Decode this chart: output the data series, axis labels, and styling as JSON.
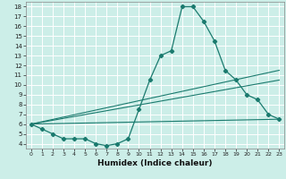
{
  "bg_color": "#cceee8",
  "grid_color": "#ffffff",
  "line_color": "#1a7a6e",
  "xlabel": "Humidex (Indice chaleur)",
  "xlim": [
    -0.5,
    23.5
  ],
  "ylim": [
    3.5,
    18.5
  ],
  "xticks": [
    0,
    1,
    2,
    3,
    4,
    5,
    6,
    7,
    8,
    9,
    10,
    11,
    12,
    13,
    14,
    15,
    16,
    17,
    18,
    19,
    20,
    21,
    22,
    23
  ],
  "yticks": [
    4,
    5,
    6,
    7,
    8,
    9,
    10,
    11,
    12,
    13,
    14,
    15,
    16,
    17,
    18
  ],
  "main_series": {
    "x": [
      0,
      1,
      2,
      3,
      4,
      5,
      6,
      7,
      8,
      9,
      10,
      11,
      12,
      13,
      14,
      15,
      16,
      17,
      18,
      19,
      20,
      21,
      22,
      23
    ],
    "y": [
      6,
      5.5,
      5,
      4.5,
      4.5,
      4.5,
      4,
      3.8,
      4,
      4.5,
      7.5,
      10.5,
      13,
      13.5,
      18,
      18,
      16.5,
      14.5,
      11.5,
      10.5,
      9,
      8.5,
      7,
      6.5
    ]
  },
  "trend_lines": [
    {
      "x": [
        0,
        23
      ],
      "y": [
        6,
        6.5
      ]
    },
    {
      "x": [
        0,
        23
      ],
      "y": [
        6,
        10.5
      ]
    },
    {
      "x": [
        0,
        23
      ],
      "y": [
        6,
        11.5
      ]
    }
  ]
}
